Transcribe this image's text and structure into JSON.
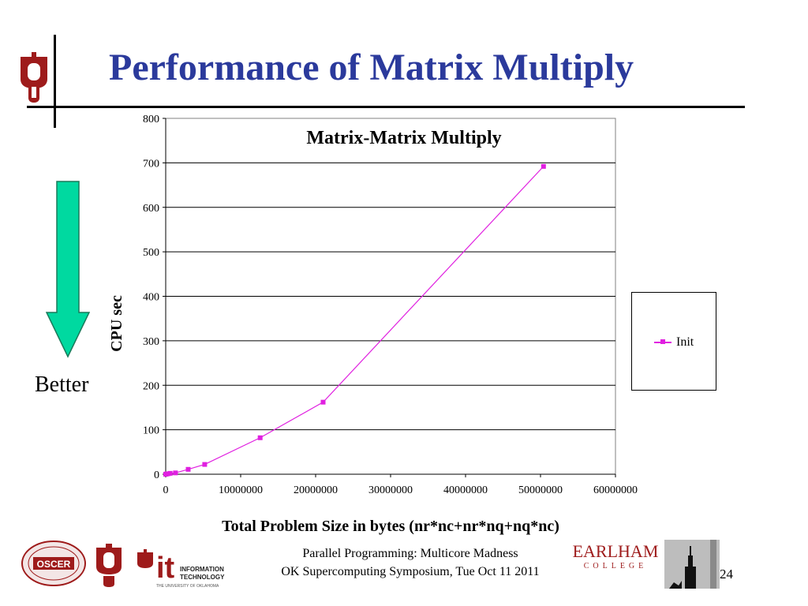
{
  "slide": {
    "title": "Performance of Matrix Multiply",
    "better_label": "Better",
    "page_number": "24",
    "footer": {
      "line1": "Parallel Programming: Multicore Madness",
      "line2": "OK Supercomputing Symposium, Tue Oct 11 2011"
    },
    "logos": {
      "oscer": "SUPERCOMPUTING CENTER OSCER",
      "it": "INFORMATION TECHNOLOGY",
      "it_sub": "THE UNIVERSITY OF OKLAHOMA",
      "earlham_top": "EARLHAM",
      "earlham_bottom": "COLLEGE"
    },
    "colors": {
      "title": "#2b3a9c",
      "ou_crimson": "#9e1b1b",
      "arrow_fill": "#00d9a0",
      "series": "#e020e0"
    }
  },
  "chart_data": {
    "type": "scatter",
    "title": "Matrix-Matrix Multiply",
    "xlabel": "Total Problem Size in bytes (nr*nc+nr*nq+nq*nc)",
    "ylabel": "CPU sec",
    "xlim": [
      0,
      60000000
    ],
    "ylim": [
      0,
      800
    ],
    "x_ticks": [
      "0",
      "10000000",
      "20000000",
      "30000000",
      "40000000",
      "50000000",
      "60000000"
    ],
    "y_ticks": [
      "0",
      "100",
      "200",
      "300",
      "400",
      "500",
      "600",
      "700",
      "800"
    ],
    "grid": true,
    "legend_position": "right",
    "series": [
      {
        "name": "Init",
        "color": "#e020e0",
        "points": [
          [
            0,
            0
          ],
          [
            100000,
            0.5
          ],
          [
            300000,
            1
          ],
          [
            600000,
            2
          ],
          [
            1300000,
            3
          ],
          [
            3000000,
            11
          ],
          [
            5200000,
            22
          ],
          [
            12600000,
            82
          ],
          [
            21000000,
            162
          ],
          [
            50400000,
            692
          ]
        ]
      }
    ]
  }
}
